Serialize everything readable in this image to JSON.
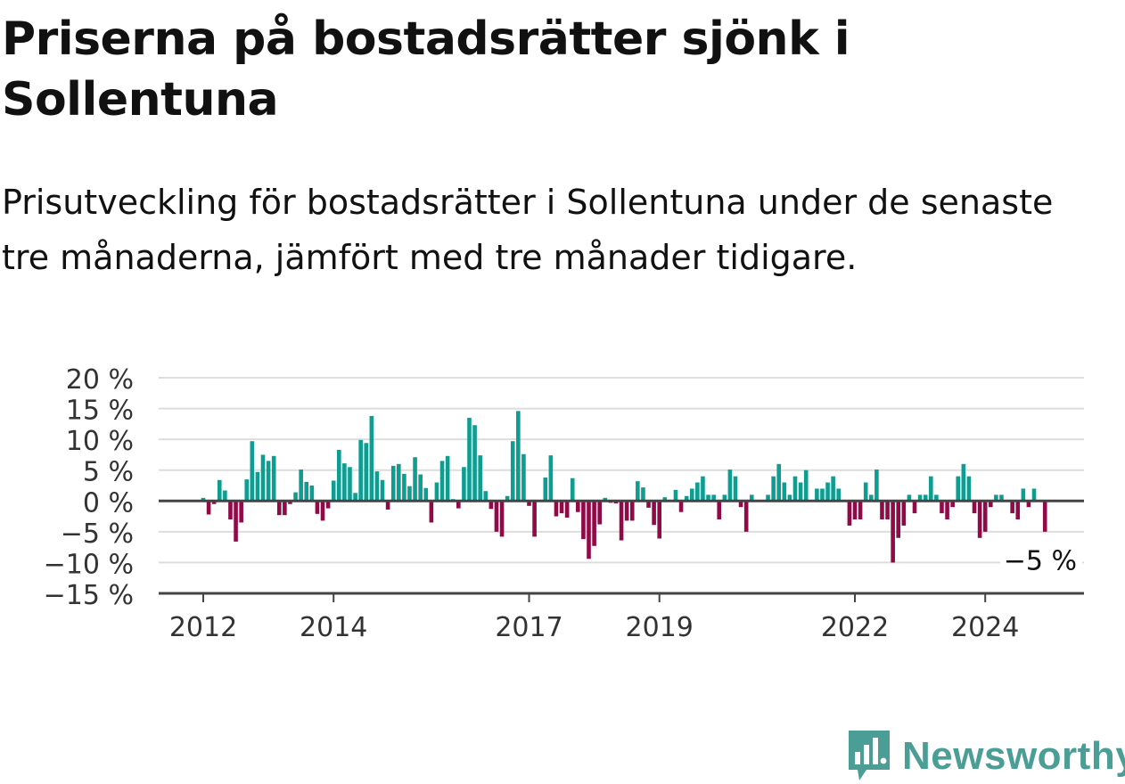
{
  "title": "Priserna på bostadsrätter sjönk i Sollentuna",
  "subtitle": "Prisutveckling för bostadsrätter i Sollentuna under de senaste tre månaderna, jämfört med tre månader tidigare.",
  "brand": {
    "name": "Newsworthy",
    "color": "#4a9e95",
    "icon": "newsworthy-logo-icon"
  },
  "colors": {
    "positive": "#0e9d91",
    "negative": "#8f0a46",
    "grid": "#dddddd",
    "baseline": "#444444"
  },
  "chart_data": {
    "type": "bar",
    "title": "Priserna på bostadsrätter sjönk i Sollentuna",
    "ylabel": "",
    "xlabel": "",
    "ylim": [
      -15,
      20
    ],
    "y_ticks": [
      20,
      15,
      10,
      5,
      0,
      -5,
      -10,
      -15
    ],
    "y_tick_labels": [
      "20 %",
      "15 %",
      "10 %",
      "5 %",
      "0 %",
      "−5 %",
      "−10 %",
      "−15 %"
    ],
    "x_ticks": [
      {
        "label": "2012",
        "date": "2012-01"
      },
      {
        "label": "2014",
        "date": "2014-01"
      },
      {
        "label": "2017",
        "date": "2017-01"
      },
      {
        "label": "2019",
        "date": "2019-01"
      },
      {
        "label": "2022",
        "date": "2022-01"
      },
      {
        "label": "2024",
        "date": "2024-01"
      }
    ],
    "start": "2012-01",
    "last_label": "−5 %",
    "grid": true,
    "values": [
      0.5,
      -2.2,
      -0.5,
      3.4,
      1.7,
      -3,
      -6.6,
      -3.5,
      3.5,
      9.7,
      4.7,
      7.5,
      6.5,
      7.3,
      -2.3,
      -2.3,
      -0.5,
      1.4,
      5.1,
      3.1,
      2.5,
      -2.1,
      -3.2,
      -1.2,
      3.3,
      8.3,
      6.1,
      5.5,
      1.3,
      9.9,
      9.4,
      13.8,
      4.8,
      3.4,
      -1.4,
      5.7,
      6,
      4.4,
      2.4,
      7.1,
      4.3,
      2.1,
      -3.5,
      3,
      6.5,
      7.3,
      0.3,
      -1.2,
      5.5,
      13.5,
      12.3,
      7.4,
      1.6,
      -1.3,
      -5,
      -5.8,
      0.8,
      9.7,
      14.6,
      7.6,
      -0.8,
      -5.8,
      0,
      3.8,
      7.4,
      -2.5,
      -2,
      -2.7,
      3.7,
      -1.8,
      -6.2,
      -9.4,
      -7.3,
      -3.8,
      0.5,
      -0.3,
      -0.4,
      -6.4,
      -3.2,
      -3.2,
      3.2,
      2.2,
      -1.1,
      -3.9,
      -6.1,
      0.6,
      0,
      1.8,
      -1.8,
      0.8,
      2,
      3,
      4,
      1,
      1,
      -3,
      1,
      5.1,
      4,
      -1,
      -5,
      1,
      0,
      0,
      1,
      4,
      6,
      3,
      1,
      4,
      3,
      5,
      0,
      2,
      2,
      3,
      4,
      2,
      0,
      -4,
      -3,
      -3,
      3,
      1,
      5.1,
      -3,
      -3,
      -10,
      -6,
      -4,
      1,
      -2,
      1,
      1,
      4,
      1,
      -2,
      -3,
      -1,
      4,
      6,
      4,
      -2,
      -6,
      -5,
      -1,
      1,
      1,
      0,
      -2,
      -3,
      2,
      -1,
      2,
      0,
      -5
    ]
  }
}
